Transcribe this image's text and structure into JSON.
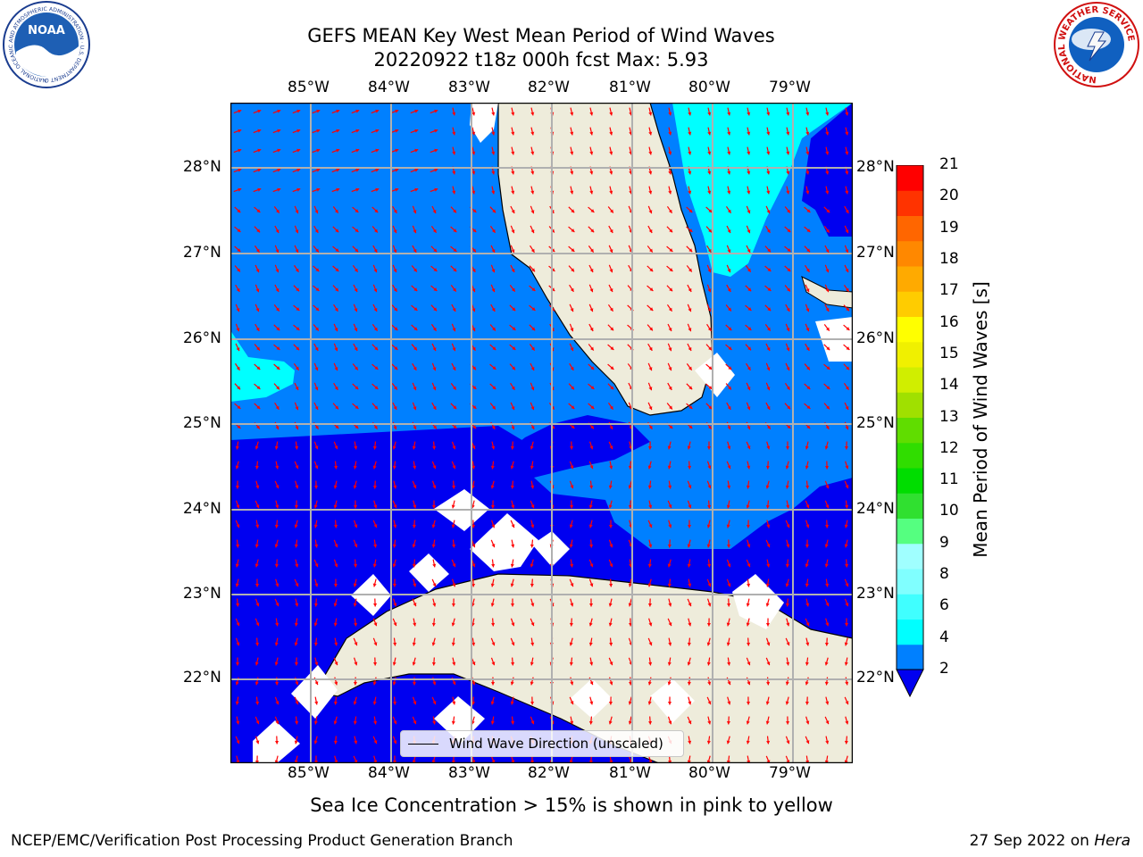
{
  "header": {
    "title_line1": "GEFS MEAN Key West Mean Period of Wind Waves",
    "title_line2": "20220922 t18z 000h fcst   Max: 5.93"
  },
  "map": {
    "lon_labels": [
      "85°W",
      "84°W",
      "83°W",
      "82°W",
      "81°W",
      "80°W",
      "79°W"
    ],
    "lat_labels": [
      "28°N",
      "27°N",
      "26°N",
      "25°N",
      "24°N",
      "23°N",
      "22°N"
    ],
    "legend_label": "Wind Wave Direction (unscaled)",
    "colors": {
      "land": "#eeecdb",
      "period_2_4": "#0080ff",
      "period_below_2": "#0000f0",
      "period_4_6": "#00ffff",
      "arrows": "#ff0000"
    }
  },
  "colorbar": {
    "ticks": [
      "21",
      "20",
      "19",
      "18",
      "17",
      "16",
      "15",
      "14",
      "13",
      "12",
      "11",
      "10",
      "9",
      "8",
      "6",
      "4",
      "2"
    ],
    "label": "Mean Period of Wind Waves [s]",
    "colors": [
      "#0080ff",
      "#00ffff",
      "#40ffff",
      "#80ffff",
      "#a0ffff",
      "#55ff80",
      "#30e030",
      "#00dd00",
      "#30dd00",
      "#60dd00",
      "#a0e000",
      "#d0ee00",
      "#f0f000",
      "#ffff00",
      "#ffcc00",
      "#ffaa00",
      "#ff8800",
      "#ff6600",
      "#ff3300",
      "#ff0000"
    ]
  },
  "subtitle": "Sea Ice Concentration > 15% is shown in pink to yellow",
  "footer": {
    "left": "NCEP/EMC/Verification Post Processing Product Generation Branch",
    "right_date": "27 Sep 2022 on ",
    "right_host": "Hera"
  },
  "logos": {
    "noaa_text": "NOAA",
    "noaa_ring": "NATIONAL OCEANIC AND ATMOSPHERIC ADMINISTRATION · U.S. DEPARTMENT OF COMMERCE",
    "nws_ring": "NATIONAL WEATHER SERVICE"
  }
}
